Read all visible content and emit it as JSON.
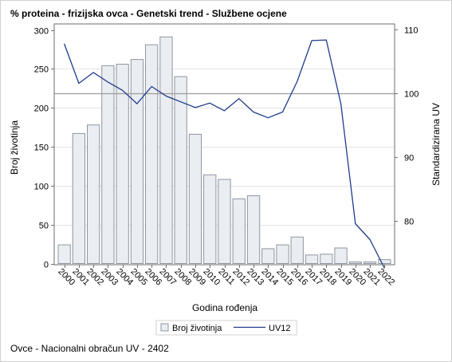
{
  "title": "% proteina - frizijska ovca - Genetski trend - Službene ocjene",
  "footnote": "Ovce - Nacionalni obračun UV - 2402",
  "colors": {
    "bar_fill": "#eaedf1",
    "bar_stroke": "#8f96a1",
    "line": "#1f3a8c",
    "reference_line": "#9c9c9c",
    "grid": "#e4e4e4",
    "axis": "#6e6e6e"
  },
  "chart_data": {
    "type": "bar",
    "title": "% proteina - frizijska ovca - Genetski trend - Službene ocjene",
    "xlabel": "Godina rođenja",
    "ylabel": "Broj životinja",
    "y2label": "Standardizirana UV",
    "categories": [
      "2000",
      "2001",
      "2002",
      "2003",
      "2004",
      "2005",
      "2006",
      "2007",
      "2008",
      "2009",
      "2010",
      "2011",
      "2012",
      "2013",
      "2014",
      "2015",
      "2016",
      "2017",
      "2018",
      "2019",
      "2020",
      "2021",
      "2022"
    ],
    "series": [
      {
        "name": "Broj životinja",
        "type": "bar",
        "axis": "left",
        "values": [
          24,
          167,
          178,
          254,
          256,
          262,
          281,
          291,
          240,
          166,
          114,
          108,
          83,
          87,
          19,
          24,
          34,
          11,
          12,
          20,
          2,
          2,
          5
        ]
      },
      {
        "name": "UV12",
        "type": "line",
        "axis": "right",
        "values": [
          107.7,
          101.5,
          103.2,
          101.7,
          100.4,
          98.3,
          101.0,
          99.5,
          98.6,
          97.7,
          98.4,
          97.2,
          99.1,
          97.0,
          96.1,
          97.0,
          101.8,
          108.2,
          108.3,
          98.3,
          79.5,
          77.0,
          72.5
        ]
      }
    ],
    "ylim": [
      0,
      300
    ],
    "y_ticks": [
      0,
      50,
      100,
      150,
      200,
      250,
      300
    ],
    "y2lim": [
      72,
      111
    ],
    "y2_ticks": [
      80,
      90,
      100,
      110
    ],
    "reference_line_y2": 100,
    "grid": true,
    "legend_position": "bottom"
  }
}
